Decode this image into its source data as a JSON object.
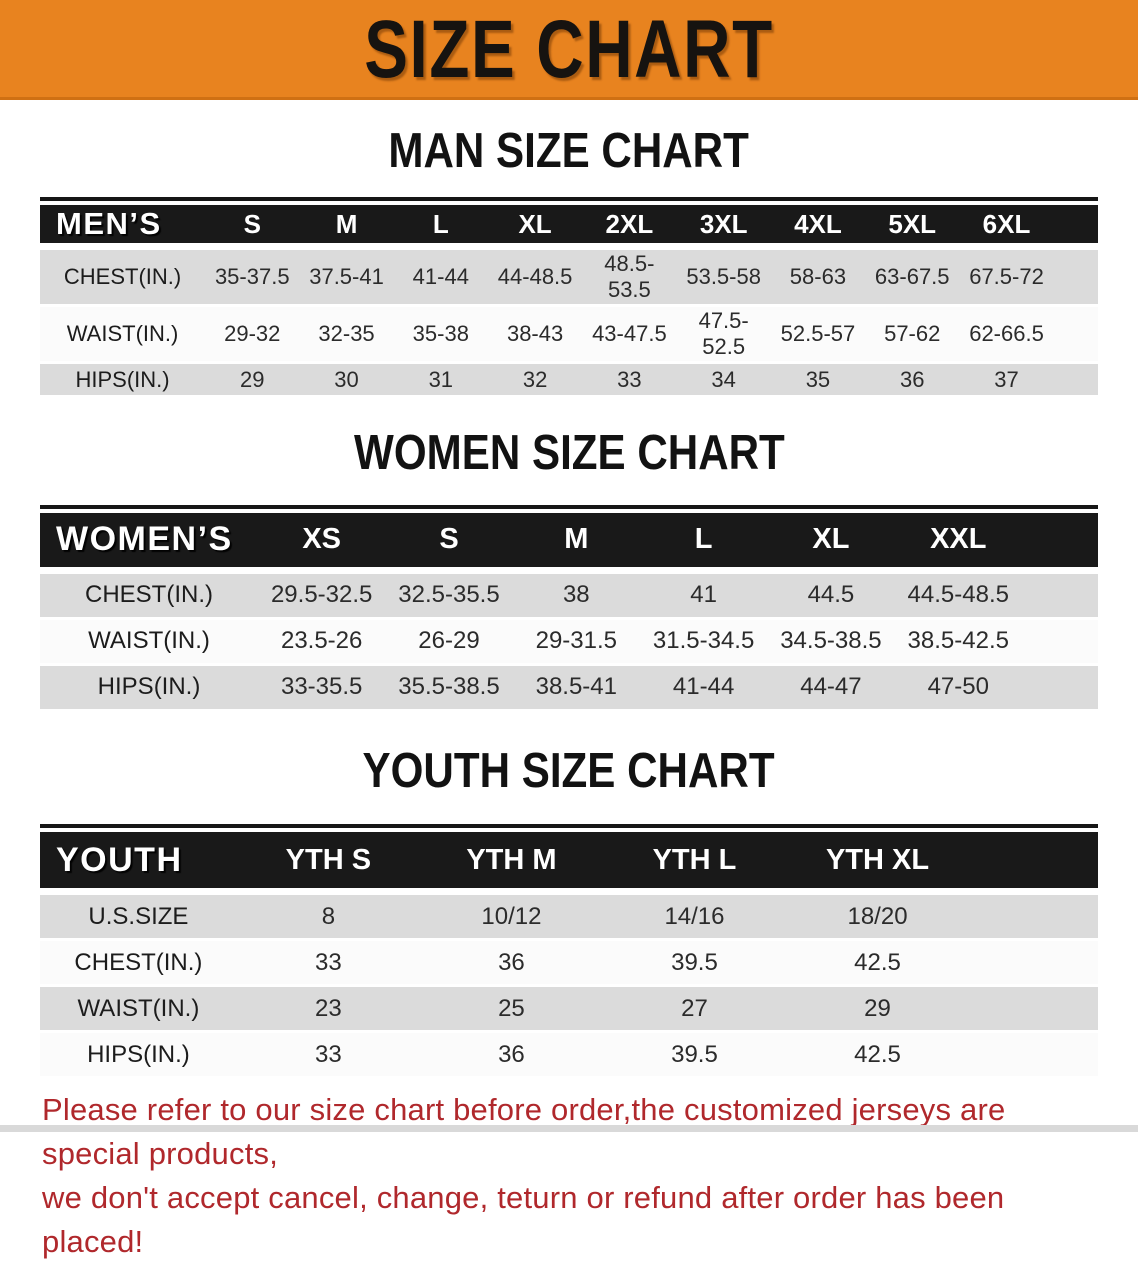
{
  "banner": {
    "title": "SIZE CHART",
    "bg_color": "#E8831F",
    "text_color": "#161310"
  },
  "sections": [
    {
      "heading": "MAN SIZE CHART",
      "table": {
        "header_label": "MEN’S",
        "columns": [
          "S",
          "M",
          "L",
          "XL",
          "2XL",
          "3XL",
          "4XL",
          "5XL",
          "6XL"
        ],
        "rows": [
          {
            "label": "CHEST(IN.)",
            "values": [
              "35-37.5",
              "37.5-41",
              "41-44",
              "44-48.5",
              "48.5-53.5",
              "53.5-58",
              "58-63",
              "63-67.5",
              "67.5-72"
            ]
          },
          {
            "label": "WAIST(IN.)",
            "values": [
              "29-32",
              "32-35",
              "35-38",
              "38-43",
              "43-47.5",
              "47.5-52.5",
              "52.5-57",
              "57-62",
              "62-66.5"
            ]
          },
          {
            "label": "HIPS(IN.)",
            "values": [
              "29",
              "30",
              "31",
              "32",
              "33",
              "34",
              "35",
              "36",
              "37"
            ]
          }
        ]
      }
    },
    {
      "heading": "WOMEN SIZE CHART",
      "table": {
        "header_label": "WOMEN’S",
        "columns": [
          "XS",
          "S",
          "M",
          "L",
          "XL",
          "XXL"
        ],
        "rows": [
          {
            "label": "CHEST(IN.)",
            "values": [
              "29.5-32.5",
              "32.5-35.5",
              "38",
              "41",
              "44.5",
              "44.5-48.5"
            ]
          },
          {
            "label": "WAIST(IN.)",
            "values": [
              "23.5-26",
              "26-29",
              "29-31.5",
              "31.5-34.5",
              "34.5-38.5",
              "38.5-42.5"
            ]
          },
          {
            "label": "HIPS(IN.)",
            "values": [
              "33-35.5",
              "35.5-38.5",
              "38.5-41",
              "41-44",
              "44-47",
              "47-50"
            ]
          }
        ]
      }
    },
    {
      "heading": "YOUTH SIZE CHART",
      "table": {
        "header_label": "YOUTH",
        "columns": [
          "YTH S",
          "YTH M",
          "YTH L",
          "YTH XL"
        ],
        "rows": [
          {
            "label": "U.S.SIZE",
            "values": [
              "8",
              "10/12",
              "14/16",
              "18/20"
            ]
          },
          {
            "label": "CHEST(IN.)",
            "values": [
              "33",
              "36",
              "39.5",
              "42.5"
            ]
          },
          {
            "label": "WAIST(IN.)",
            "values": [
              "23",
              "25",
              "27",
              "29"
            ]
          },
          {
            "label": "HIPS(IN.)",
            "values": [
              "33",
              "36",
              "39.5",
              "42.5"
            ]
          }
        ]
      }
    }
  ],
  "disclaimer": {
    "line1": "Please refer to our size chart before order,the customized jerseys are special products,",
    "line2": "we don't accept cancel, change, teturn or refund after order has been placed!",
    "color": "#B0282C"
  }
}
